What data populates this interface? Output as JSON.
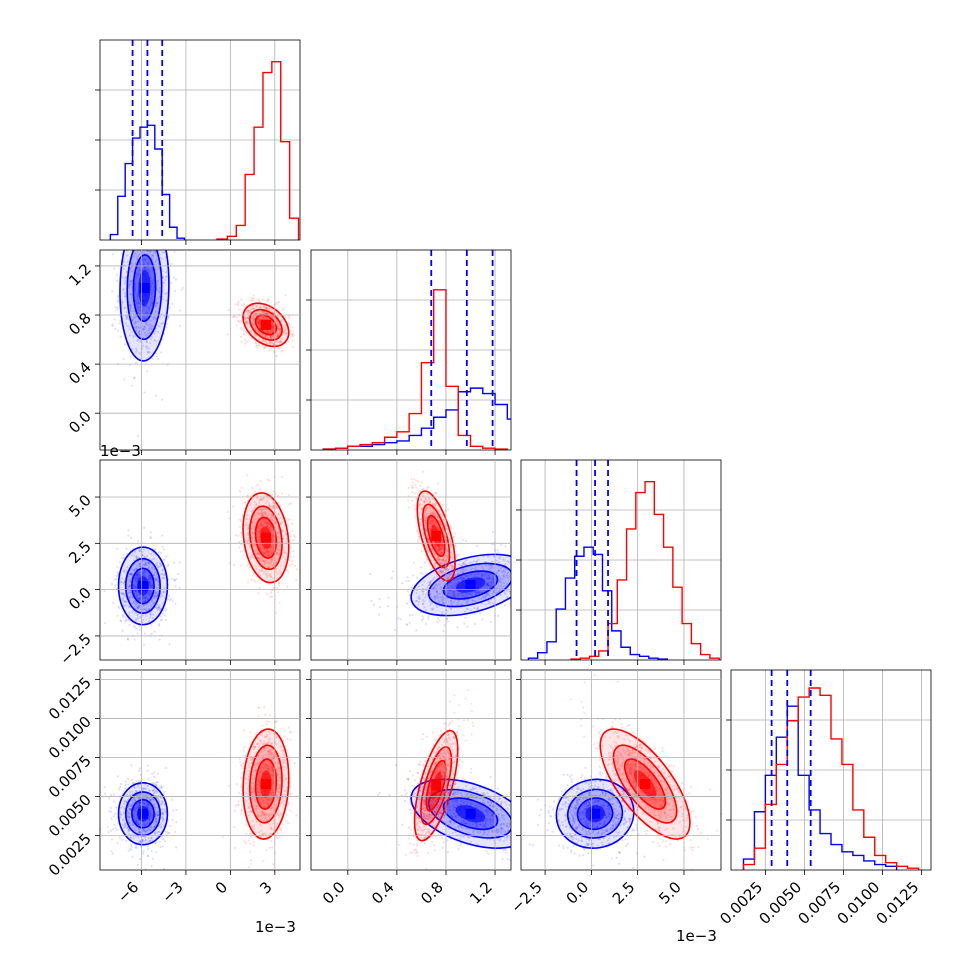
{
  "chart_data": {
    "type": "corner",
    "grid": true,
    "series": [
      {
        "name": "",
        "color": "#0000ff"
      },
      {
        "name": "",
        "color": "#ff0000"
      }
    ],
    "params": [
      {
        "range": [
          -8.8,
          4.7
        ],
        "ticks": [
          -6,
          -3,
          0,
          3
        ],
        "tick_labels": [
          "−6",
          "−3",
          "0",
          "3"
        ],
        "offset_label": "1e−3"
      },
      {
        "range": [
          -0.3,
          1.33
        ],
        "ticks": [
          0.0,
          0.4,
          0.8,
          1.2
        ],
        "tick_labels": [
          "0.0",
          "0.4",
          "0.8",
          "1.2"
        ],
        "offset_label": ""
      },
      {
        "range": [
          -3.8,
          7.0
        ],
        "ticks": [
          -2.5,
          0.0,
          2.5,
          5.0
        ],
        "tick_labels": [
          "−2.5",
          "0.0",
          "2.5",
          "5.0"
        ],
        "offset_label": "1e−3"
      },
      {
        "range": [
          0.0003,
          0.0131
        ],
        "ticks": [
          0.0025,
          0.005,
          0.0075,
          0.01,
          0.0125
        ],
        "tick_labels": [
          "0.0025",
          "0.0050",
          "0.0075",
          "0.0100",
          "0.0125"
        ],
        "offset_label": ""
      }
    ],
    "diagonal": [
      {
        "quantiles": [
          [
            -6.6,
            -5.6,
            -4.6
          ]
        ],
        "hist": [
          {
            "series": 0,
            "edges": [
              -8.1,
              -7.6,
              -7.1,
              -6.6,
              -6.1,
              -5.6,
              -5.1,
              -4.6,
              -4.1,
              -3.6,
              -3.1
            ],
            "counts": [
              0.03,
              0.24,
              0.42,
              0.56,
              0.62,
              0.63,
              0.5,
              0.25,
              0.07,
              0.01
            ]
          },
          {
            "series": 1,
            "edges": [
              -0.9,
              -0.2,
              0.4,
              1.0,
              1.6,
              2.2,
              2.8,
              3.4,
              4.0,
              4.6
            ],
            "counts": [
              0.005,
              0.02,
              0.08,
              0.36,
              0.62,
              0.92,
              0.98,
              0.54,
              0.12
            ]
          }
        ]
      },
      {
        "quantiles": [
          [
            0.68,
            0.97,
            1.18
          ]
        ],
        "hist": [
          {
            "series": 0,
            "edges": [
              -0.2,
              -0.1,
              0.0,
              0.1,
              0.2,
              0.3,
              0.4,
              0.5,
              0.6,
              0.7,
              0.8,
              0.9,
              1.0,
              1.1,
              1.2,
              1.3,
              1.4
            ],
            "counts": [
              0.005,
              0.01,
              0.02,
              0.02,
              0.03,
              0.04,
              0.05,
              0.08,
              0.12,
              0.18,
              0.22,
              0.32,
              0.34,
              0.31,
              0.25,
              0.17,
              0.1
            ]
          },
          {
            "series": 1,
            "edges": [
              -0.2,
              -0.1,
              0.0,
              0.1,
              0.2,
              0.3,
              0.4,
              0.5,
              0.6,
              0.7,
              0.8,
              0.9,
              1.0,
              1.1,
              1.2,
              1.3
            ],
            "counts": [
              0.005,
              0.01,
              0.02,
              0.03,
              0.04,
              0.07,
              0.1,
              0.2,
              0.48,
              0.88,
              0.35,
              0.08,
              0.02,
              0.01,
              0.005
            ]
          }
        ]
      },
      {
        "quantiles": [
          [
            -0.8,
            0.2,
            0.9
          ]
        ],
        "hist": [
          {
            "series": 0,
            "edges": [
              -3.4,
              -2.9,
              -2.4,
              -1.9,
              -1.4,
              -0.9,
              -0.4,
              0.1,
              0.6,
              1.1,
              1.6,
              2.1,
              2.6,
              3.1,
              3.6,
              4.1
            ],
            "counts": [
              0.01,
              0.04,
              0.1,
              0.28,
              0.45,
              0.57,
              0.62,
              0.58,
              0.38,
              0.16,
              0.07,
              0.03,
              0.02,
              0.01,
              0.005
            ]
          },
          {
            "series": 1,
            "edges": [
              -1.1,
              -0.6,
              -0.1,
              0.4,
              0.9,
              1.4,
              1.9,
              2.4,
              2.9,
              3.4,
              3.9,
              4.4,
              4.9,
              5.4,
              5.9,
              6.4,
              6.9
            ],
            "counts": [
              0.005,
              0.01,
              0.02,
              0.05,
              0.2,
              0.44,
              0.72,
              0.92,
              0.98,
              0.8,
              0.62,
              0.4,
              0.2,
              0.09,
              0.03,
              0.01
            ]
          }
        ]
      },
      {
        "quantiles": [
          [
            0.0029,
            0.0039,
            0.0054
          ]
        ],
        "hist": [
          {
            "series": 0,
            "edges": [
              0.0011,
              0.0018,
              0.0025,
              0.0032,
              0.0039,
              0.0046,
              0.0053,
              0.006,
              0.0067,
              0.0074,
              0.0081,
              0.0088,
              0.0095,
              0.0102,
              0.0109
            ],
            "counts": [
              0.06,
              0.32,
              0.52,
              0.73,
              0.9,
              0.52,
              0.33,
              0.2,
              0.14,
              0.1,
              0.08,
              0.05,
              0.03,
              0.02
            ]
          },
          {
            "series": 1,
            "edges": [
              0.0011,
              0.0018,
              0.0025,
              0.0032,
              0.0039,
              0.0046,
              0.0053,
              0.006,
              0.0067,
              0.0074,
              0.0081,
              0.0088,
              0.0095,
              0.0102,
              0.0109,
              0.0116,
              0.0123
            ],
            "counts": [
              0.03,
              0.12,
              0.36,
              0.58,
              0.82,
              0.95,
              1.0,
              0.96,
              0.72,
              0.58,
              0.33,
              0.18,
              0.08,
              0.04,
              0.02,
              0.01
            ]
          }
        ]
      }
    ],
    "pairs": [
      {
        "row": 1,
        "col": 0,
        "blobs": [
          {
            "series": 0,
            "center": [
              -5.8,
              1.02
            ],
            "sd": [
              0.75,
              0.27
            ],
            "rho": 0.05
          },
          {
            "series": 1,
            "center": [
              2.4,
              0.72
            ],
            "sd": [
              0.7,
              0.08
            ],
            "rho": -0.35
          }
        ]
      },
      {
        "row": 2,
        "col": 0,
        "blobs": [
          {
            "series": 0,
            "center": [
              -5.9,
              0.2
            ],
            "sd": [
              0.75,
              0.95
            ],
            "rho": 0.0
          },
          {
            "series": 1,
            "center": [
              2.4,
              2.8
            ],
            "sd": [
              0.7,
              1.1
            ],
            "rho": -0.2
          }
        ]
      },
      {
        "row": 3,
        "col": 0,
        "blobs": [
          {
            "series": 0,
            "center": [
              -5.9,
              0.0039
            ],
            "sd": [
              0.75,
              0.0009
            ],
            "rho": 0.0
          },
          {
            "series": 1,
            "center": [
              2.4,
              0.0058
            ],
            "sd": [
              0.7,
              0.0016
            ],
            "rho": 0.1
          }
        ]
      },
      {
        "row": 2,
        "col": 1,
        "blobs": [
          {
            "series": 0,
            "center": [
              1.0,
              0.25
            ],
            "sd": [
              0.22,
              0.75
            ],
            "rho": 0.4
          },
          {
            "series": 1,
            "center": [
              0.72,
              2.9
            ],
            "sd": [
              0.07,
              1.1
            ],
            "rho": -0.6
          }
        ]
      },
      {
        "row": 3,
        "col": 1,
        "blobs": [
          {
            "series": 0,
            "center": [
              1.0,
              0.0039
            ],
            "sd": [
              0.22,
              0.001
            ],
            "rho": -0.45
          },
          {
            "series": 1,
            "center": [
              0.72,
              0.0057
            ],
            "sd": [
              0.08,
              0.0016
            ],
            "rho": 0.65
          }
        ]
      },
      {
        "row": 3,
        "col": 2,
        "blobs": [
          {
            "series": 0,
            "center": [
              0.2,
              0.0039
            ],
            "sd": [
              0.95,
              0.001
            ],
            "rho": 0.05
          },
          {
            "series": 1,
            "center": [
              2.9,
              0.0058
            ],
            "sd": [
              1.1,
              0.0016
            ],
            "rho": -0.7
          }
        ]
      }
    ]
  }
}
